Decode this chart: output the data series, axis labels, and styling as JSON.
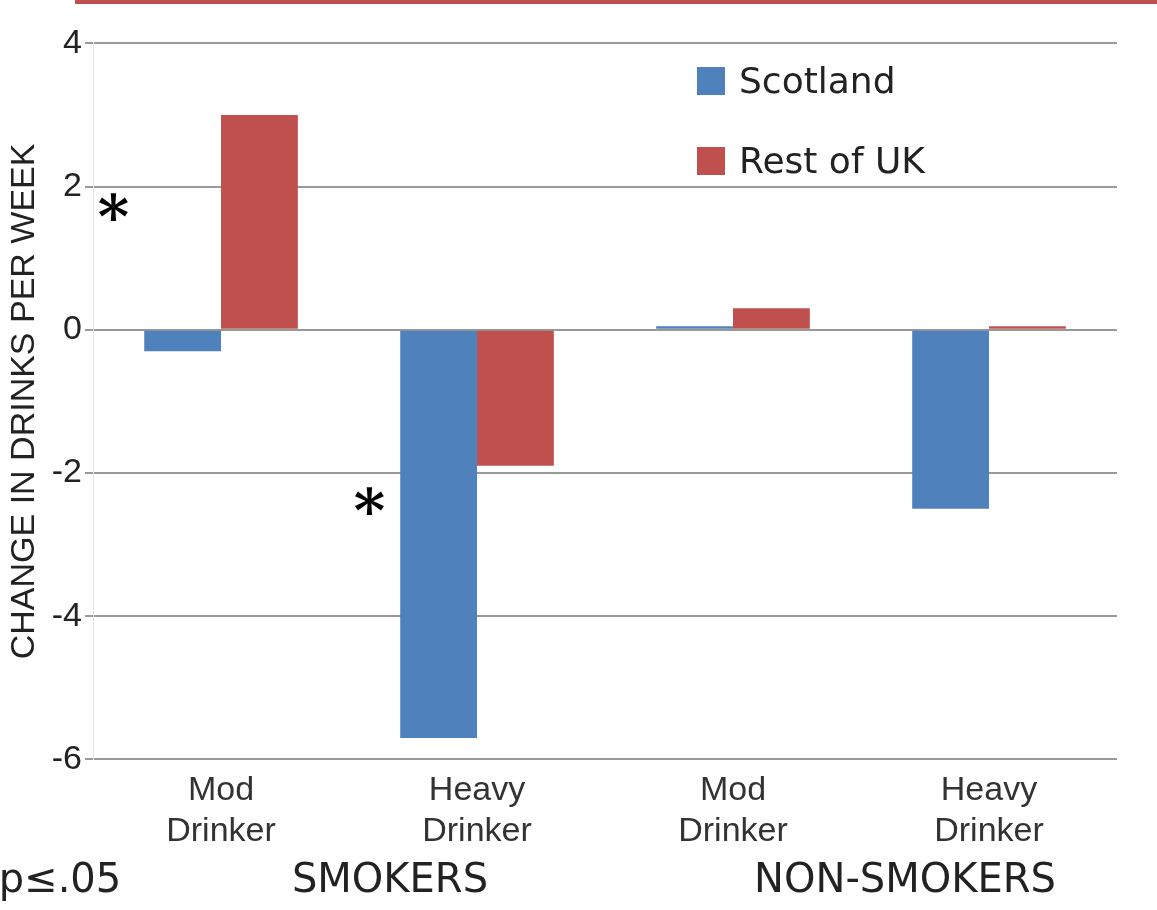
{
  "chart_data": {
    "type": "bar",
    "ylabel": "CHANGE IN DRINKS PER WEEK",
    "categories": [
      "Mod Drinker",
      "Heavy Drinker",
      "Mod Drinker",
      "Heavy Drinker"
    ],
    "series": [
      {
        "name": "Scotland",
        "color": "#4f81bd",
        "values": [
          -0.3,
          -5.7,
          0.05,
          -2.5
        ]
      },
      {
        "name": "Rest of UK",
        "color": "#c0504d",
        "values": [
          3.0,
          -1.9,
          0.3,
          0.05
        ]
      }
    ],
    "ylim": [
      -6,
      4
    ],
    "yticks": [
      -6,
      -4,
      -2,
      0,
      2,
      4
    ],
    "grid": "y",
    "legend": "top right",
    "annotations": [
      {
        "text": "*",
        "x": "Mod Drinker",
        "y": 1.5
      },
      {
        "text": "*",
        "x": "Heavy Drinker",
        "y": -2.6
      },
      "SMOKERS",
      "NON-SMOKERS",
      "p≤.05"
    ]
  }
}
